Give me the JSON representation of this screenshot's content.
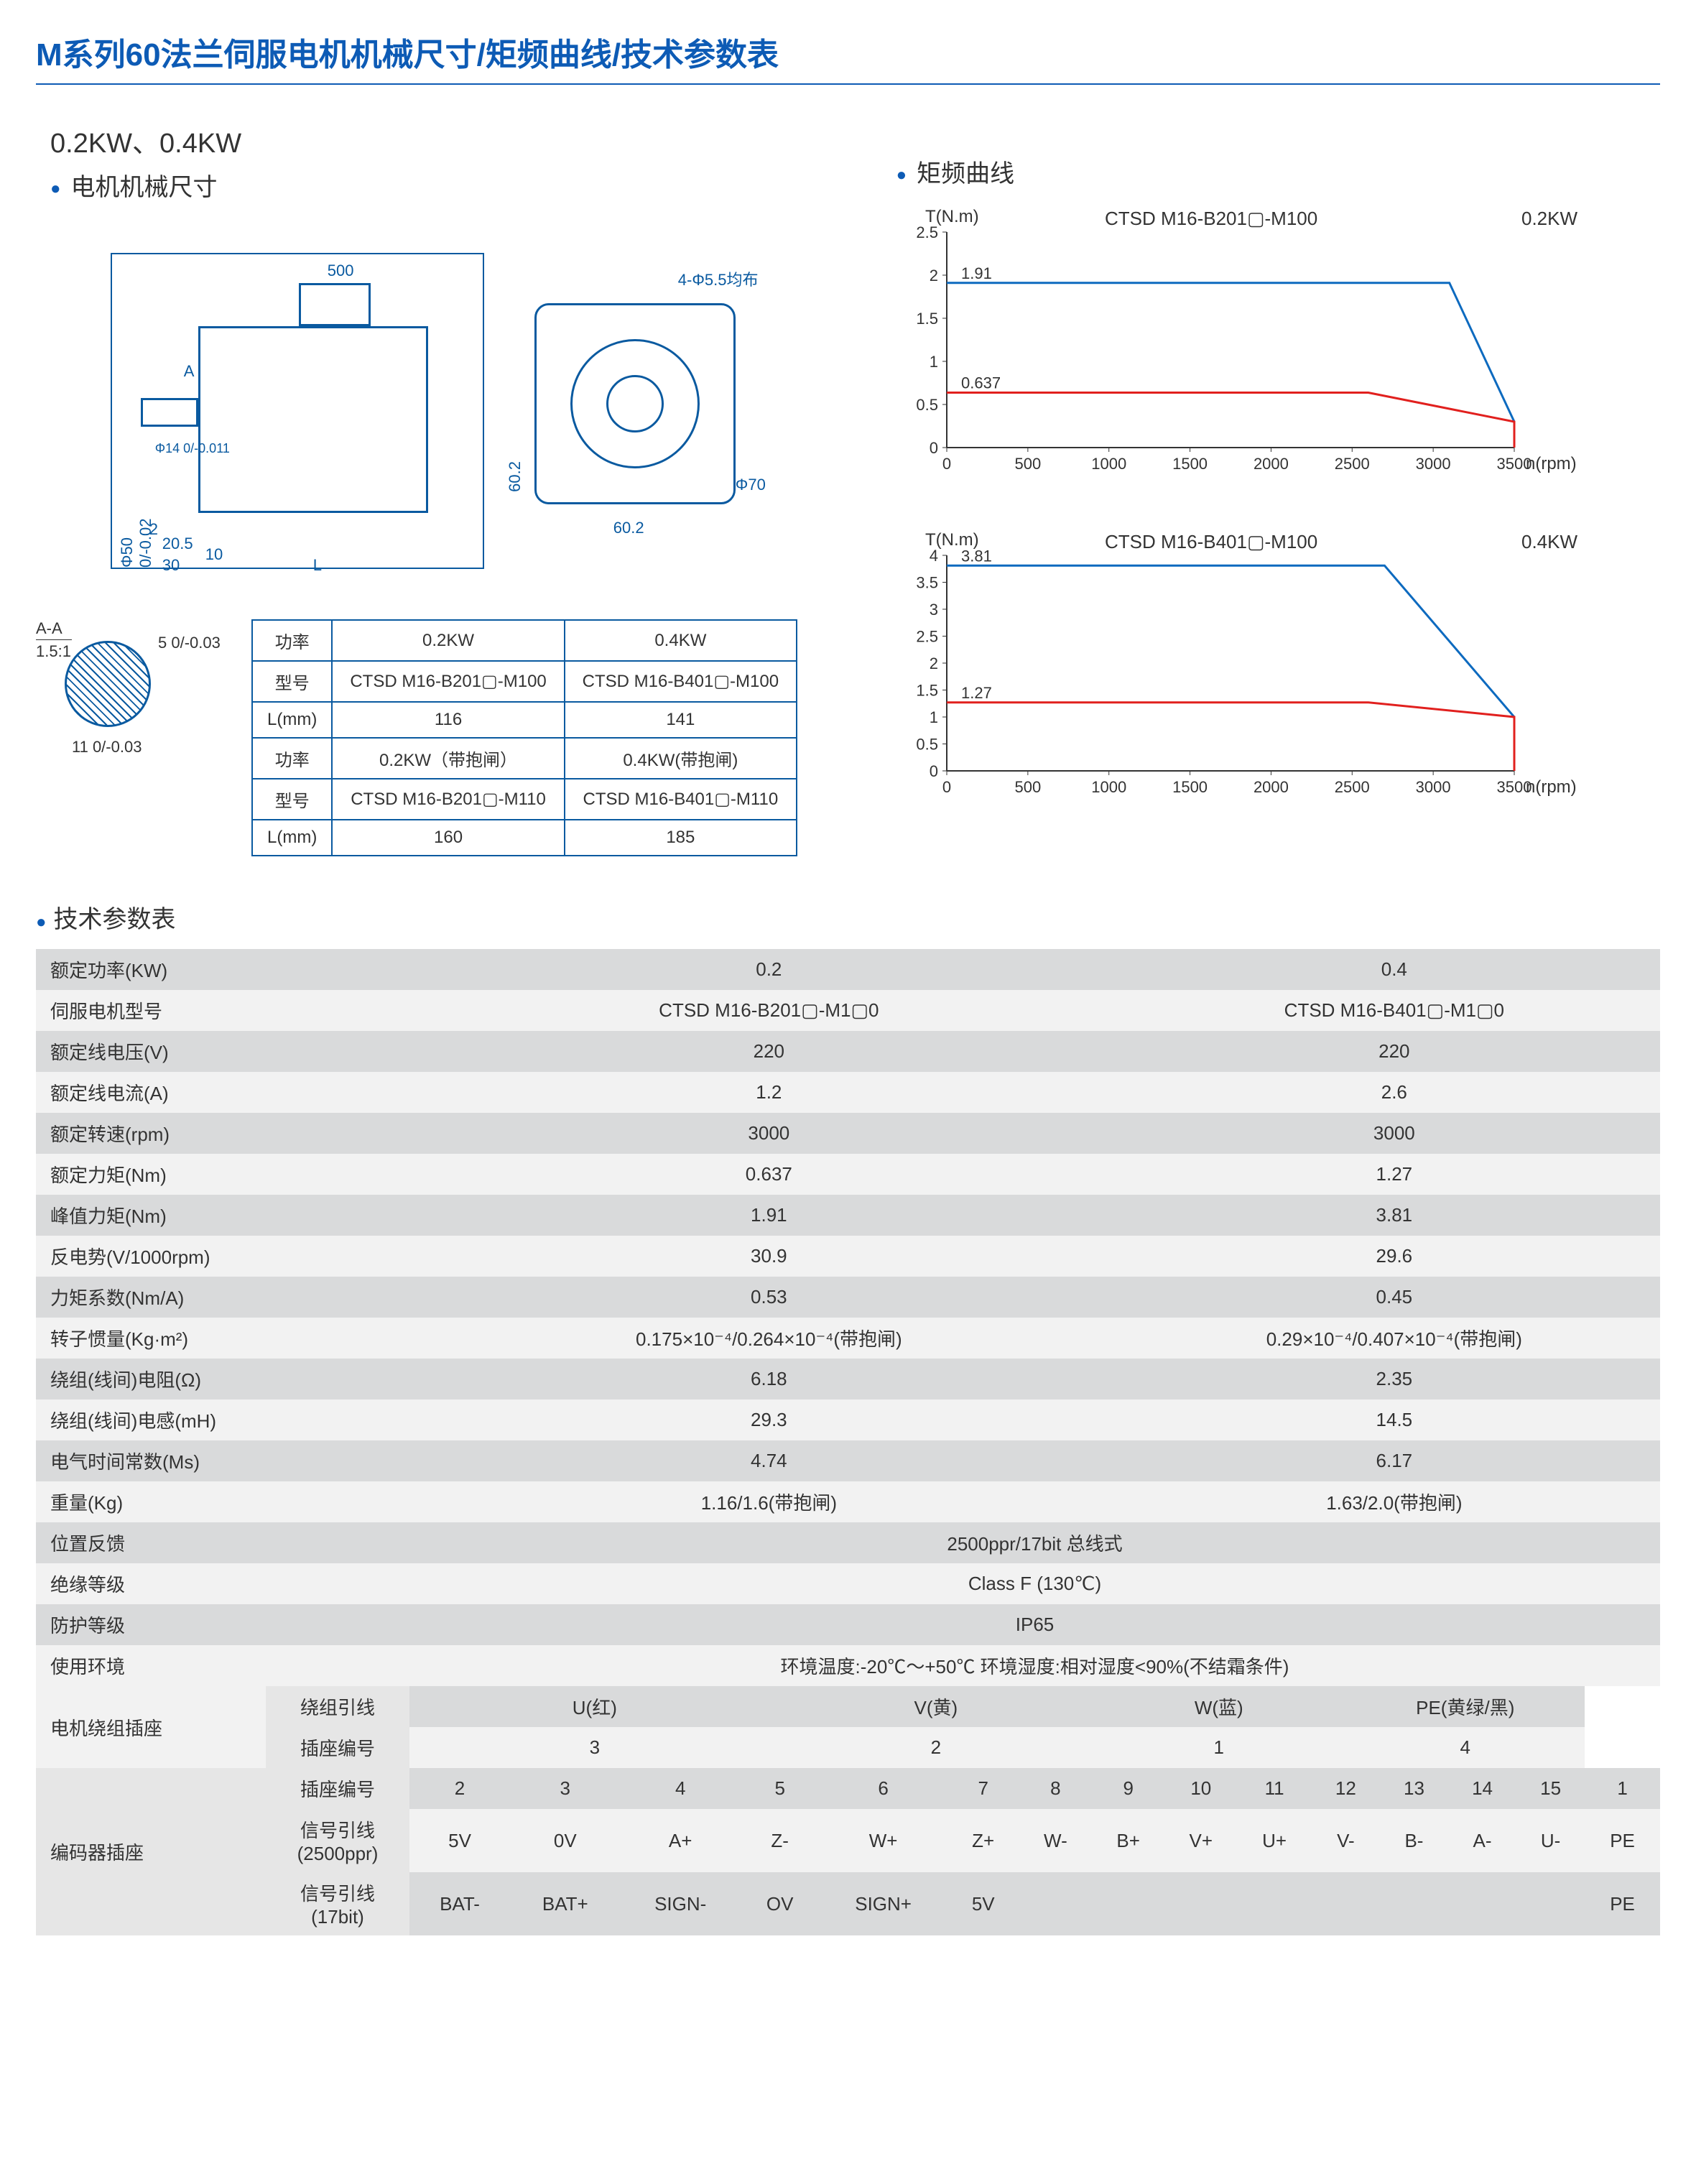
{
  "title": "M系列60法兰伺服电机机械尺寸/矩频曲线/技术参数表",
  "power_heading": "0.2KW、0.4KW",
  "section_mech": "电机机械尺寸",
  "section_curve": "矩频曲线",
  "section_spec": "技术参数表",
  "mech_labels": {
    "cable_len": "500",
    "holes": "4-Φ5.5均布",
    "dim_A": "A",
    "dia50": "Φ50 0/-0.02",
    "dia14": "Φ14 0/-0.011",
    "d2": "2",
    "d20_5": "20.5",
    "d10": "10",
    "d30": "30",
    "dL": "L",
    "d60_2v": "60.2",
    "d60_2h": "60.2",
    "dia70": "Φ70",
    "d5": "5 0/-0.03",
    "aa_title": "A-A",
    "aa_ratio": "1.5:1",
    "d11": "11 0/-0.03"
  },
  "dim_table": {
    "headers": [
      "功率",
      "0.2KW",
      "0.4KW"
    ],
    "rows": [
      [
        "型号",
        "CTSD M16-B201▢-M100",
        "CTSD M16-B401▢-M100"
      ],
      [
        "L(mm)",
        "116",
        "141"
      ],
      [
        "功率",
        "0.2KW（带抱闸）",
        "0.4KW(带抱闸)"
      ],
      [
        "型号",
        "CTSD M16-B201▢-M110",
        "CTSD M16-B401▢-M110"
      ],
      [
        "L(mm)",
        "160",
        "185"
      ]
    ]
  },
  "charts": [
    {
      "title": "CTSD M16-B201▢-M100",
      "power": "0.2KW",
      "y_label": "T(N.m)",
      "x_label": "n(rpm)",
      "y_max": 2.5,
      "y_step": 0.5,
      "x_max": 3500,
      "x_step": 500,
      "peak_val": 1.91,
      "rated_val": 0.637,
      "peak_points": [
        [
          0,
          1.91
        ],
        [
          3100,
          1.91
        ],
        [
          3500,
          0.3
        ],
        [
          3500,
          0
        ]
      ],
      "rated_points": [
        [
          0,
          0.637
        ],
        [
          2600,
          0.637
        ],
        [
          3500,
          0.3
        ],
        [
          3500,
          0
        ]
      ],
      "peak_color": "#0d6abf",
      "rated_color": "#e1201e",
      "tick_color": "#333",
      "line_width": 3
    },
    {
      "title": "CTSD M16-B401▢-M100",
      "power": "0.4KW",
      "y_label": "T(N.m)",
      "x_label": "n(rpm)",
      "y_max": 4,
      "y_step": 0.5,
      "x_max": 3500,
      "x_step": 500,
      "peak_val": 3.81,
      "rated_val": 1.27,
      "peak_points": [
        [
          0,
          3.81
        ],
        [
          2700,
          3.81
        ],
        [
          3500,
          1.0
        ],
        [
          3500,
          0
        ]
      ],
      "rated_points": [
        [
          0,
          1.27
        ],
        [
          2600,
          1.27
        ],
        [
          3500,
          1.0
        ],
        [
          3500,
          0
        ]
      ],
      "peak_color": "#0d6abf",
      "rated_color": "#e1201e",
      "tick_color": "#333",
      "line_width": 3
    }
  ],
  "spec_rows": [
    {
      "label": "额定功率(KW)",
      "vals": [
        "0.2",
        "0.4"
      ]
    },
    {
      "label": "伺服电机型号",
      "vals": [
        "CTSD M16-B201▢-M1▢0",
        "CTSD M16-B401▢-M1▢0"
      ]
    },
    {
      "label": "额定线电压(V)",
      "vals": [
        "220",
        "220"
      ]
    },
    {
      "label": "额定线电流(A)",
      "vals": [
        "1.2",
        "2.6"
      ]
    },
    {
      "label": "额定转速(rpm)",
      "vals": [
        "3000",
        "3000"
      ]
    },
    {
      "label": "额定力矩(Nm)",
      "vals": [
        "0.637",
        "1.27"
      ]
    },
    {
      "label": "峰值力矩(Nm)",
      "vals": [
        "1.91",
        "3.81"
      ]
    },
    {
      "label": "反电势(V/1000rpm)",
      "vals": [
        "30.9",
        "29.6"
      ]
    },
    {
      "label": "力矩系数(Nm/A)",
      "vals": [
        "0.53",
        "0.45"
      ]
    },
    {
      "label": "转子惯量(Kg·m²)",
      "vals": [
        "0.175×10⁻⁴/0.264×10⁻⁴(带抱闸)",
        "0.29×10⁻⁴/0.407×10⁻⁴(带抱闸)"
      ]
    },
    {
      "label": "绕组(线间)电阻(Ω)",
      "vals": [
        "6.18",
        "2.35"
      ]
    },
    {
      "label": "绕组(线间)电感(mH)",
      "vals": [
        "29.3",
        "14.5"
      ]
    },
    {
      "label": "电气时间常数(Ms)",
      "vals": [
        "4.74",
        "6.17"
      ]
    },
    {
      "label": "重量(Kg)",
      "vals": [
        "1.16/1.6(带抱闸)",
        "1.63/2.0(带抱闸)"
      ]
    }
  ],
  "spec_span_rows": [
    {
      "label": "位置反馈",
      "val": "2500ppr/17bit 总线式"
    },
    {
      "label": "绝缘等级",
      "val": "Class F (130℃)"
    },
    {
      "label": "防护等级",
      "val": "IP65"
    },
    {
      "label": "使用环境",
      "val": "环境温度:-20℃～+50℃  环境湿度:相对湿度<90%(不结霜条件)"
    }
  ],
  "winding": {
    "group_label": "电机绕组插座",
    "row1_label": "绕组引线",
    "row1": [
      "U(红)",
      "V(黄)",
      "W(蓝)",
      "PE(黄绿/黑)"
    ],
    "row2_label": "插座编号",
    "row2": [
      "3",
      "2",
      "1",
      "4"
    ]
  },
  "encoder": {
    "group_label": "编码器插座",
    "pin_label": "插座编号",
    "pins": [
      "2",
      "3",
      "4",
      "5",
      "6",
      "7",
      "8",
      "9",
      "10",
      "11",
      "12",
      "13",
      "14",
      "15",
      "1"
    ],
    "sig2500_label": "信号引线(2500ppr)",
    "sig2500": [
      "5V",
      "0V",
      "A+",
      "Z-",
      "W+",
      "Z+",
      "W-",
      "B+",
      "V+",
      "U+",
      "V-",
      "B-",
      "A-",
      "U-",
      "PE"
    ],
    "sig17_label": "信号引线(17bit)",
    "sig17": [
      "BAT-",
      "BAT+",
      "SIGN-",
      "OV",
      "SIGN+",
      "5V",
      "",
      "",
      "",
      "",
      "",
      "",
      "",
      "",
      "PE"
    ]
  }
}
